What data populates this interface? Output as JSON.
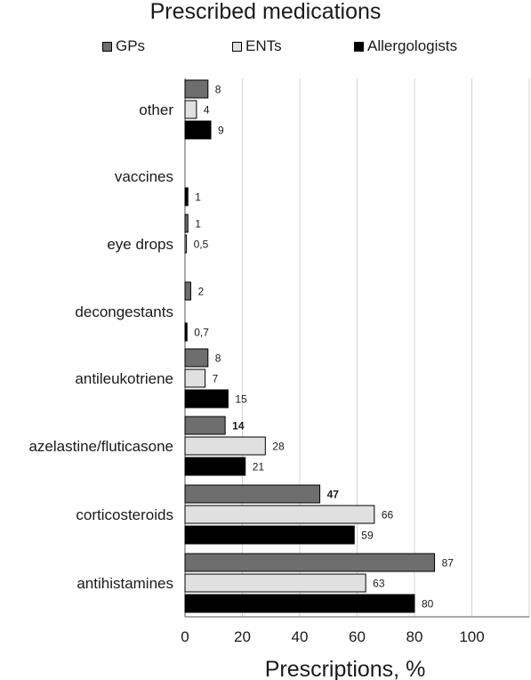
{
  "chart_data": {
    "type": "bar",
    "orientation": "horizontal",
    "title": "Prescribed medications",
    "xlabel": "Prescriptions, %",
    "ylabel": "",
    "xlim": [
      0,
      120
    ],
    "xticks": [
      "0",
      "20",
      "40",
      "60",
      "80",
      "100"
    ],
    "grid": true,
    "legend_position": "top",
    "categories": [
      "other",
      "vaccines",
      "eye drops",
      "decongestants",
      "antileukotriene",
      "azelastine/fluticasone",
      "corticosteroids",
      "antihistamines"
    ],
    "series": [
      {
        "name": "GPs",
        "color": "#6e6e6e",
        "values": [
          8,
          null,
          1,
          2,
          8,
          14,
          47,
          87
        ],
        "labels": [
          "8",
          "",
          "1",
          "2",
          "8",
          "14",
          "47",
          "87"
        ],
        "bold_labels": [
          false,
          false,
          false,
          false,
          false,
          true,
          true,
          false
        ]
      },
      {
        "name": "ENTs",
        "color": "#e0e0e0",
        "values": [
          4,
          null,
          0.5,
          null,
          7,
          28,
          66,
          63
        ],
        "labels": [
          "4",
          "",
          "0,5",
          "",
          "7",
          "28",
          "66",
          "63"
        ],
        "bold_labels": [
          false,
          false,
          false,
          false,
          false,
          false,
          false,
          false
        ]
      },
      {
        "name": "Allergologists",
        "color": "#000000",
        "values": [
          9,
          1,
          null,
          0.7,
          15,
          21,
          59,
          80
        ],
        "labels": [
          "9",
          "1",
          "",
          "0,7",
          "15",
          "21",
          "59",
          "80"
        ],
        "bold_labels": [
          false,
          false,
          false,
          false,
          false,
          false,
          false,
          false
        ]
      }
    ]
  }
}
